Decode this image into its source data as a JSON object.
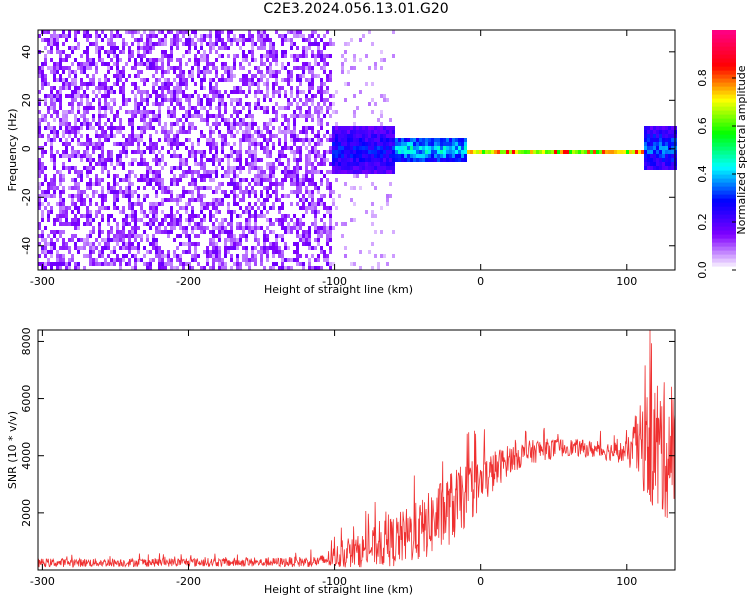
{
  "title": "C2E3.2024.056.13.01.G20",
  "chart_data": [
    {
      "type": "heatmap",
      "xlabel": "Height of straight line (km)",
      "ylabel": "Frequency (Hz)",
      "xlim": [
        -303,
        133
      ],
      "ylim": [
        -50,
        49
      ],
      "xticks": [
        -300,
        -200,
        -100,
        0,
        100
      ],
      "yticks": [
        -40,
        -20,
        0,
        20,
        40
      ],
      "colorbar": {
        "label": "Normalized spectral amplitude",
        "range": [
          0.0,
          1.0
        ],
        "ticks": [
          0.0,
          0.2,
          0.4,
          0.6,
          0.8
        ],
        "colors": [
          "#ffffff",
          "#8000ff",
          "#0000ff",
          "#00ffff",
          "#00ff00",
          "#ffff00",
          "#ff0000",
          "#ff0080"
        ]
      },
      "regions": [
        {
          "x_range": [
            -303,
            -103
          ],
          "freq_range": [
            -50,
            49
          ],
          "amplitude": 0.1,
          "description": "broadband noise"
        },
        {
          "x_range": [
            -103,
            -60
          ],
          "freq_range": [
            -10,
            10
          ],
          "amplitude": 0.3
        },
        {
          "x_range": [
            -60,
            -10
          ],
          "freq_range": [
            -5,
            6
          ],
          "amplitude": 0.45
        },
        {
          "x_range": [
            -10,
            110
          ],
          "freq_range": [
            -1,
            1
          ],
          "amplitude": 0.95
        },
        {
          "x_range": [
            110,
            133
          ],
          "freq_range": [
            -8,
            10
          ],
          "amplitude": 0.35
        }
      ]
    },
    {
      "type": "line",
      "xlabel": "Height of straight line (km)",
      "ylabel": "SNR (10 * v/v)",
      "xlim": [
        -303,
        133
      ],
      "ylim": [
        0,
        8400
      ],
      "xticks": [
        -300,
        -200,
        -100,
        0,
        100
      ],
      "yticks": [
        2000,
        4000,
        6000,
        8000
      ],
      "series": [
        {
          "color": "#ef3030",
          "x": [
            -303,
            -250,
            -200,
            -150,
            -110,
            -100,
            -80,
            -60,
            -40,
            -20,
            0,
            10,
            20,
            40,
            60,
            80,
            100,
            110,
            120,
            133
          ],
          "y": [
            250,
            260,
            270,
            260,
            300,
            450,
            700,
            1000,
            1400,
            2200,
            3000,
            3500,
            3900,
            4200,
            4300,
            4200,
            4100,
            4400,
            4300,
            4000
          ],
          "spread": [
            150,
            150,
            150,
            150,
            200,
            400,
            600,
            900,
            1100,
            1300,
            900,
            700,
            500,
            400,
            300,
            300,
            400,
            1500,
            2600,
            2200
          ]
        }
      ]
    }
  ]
}
